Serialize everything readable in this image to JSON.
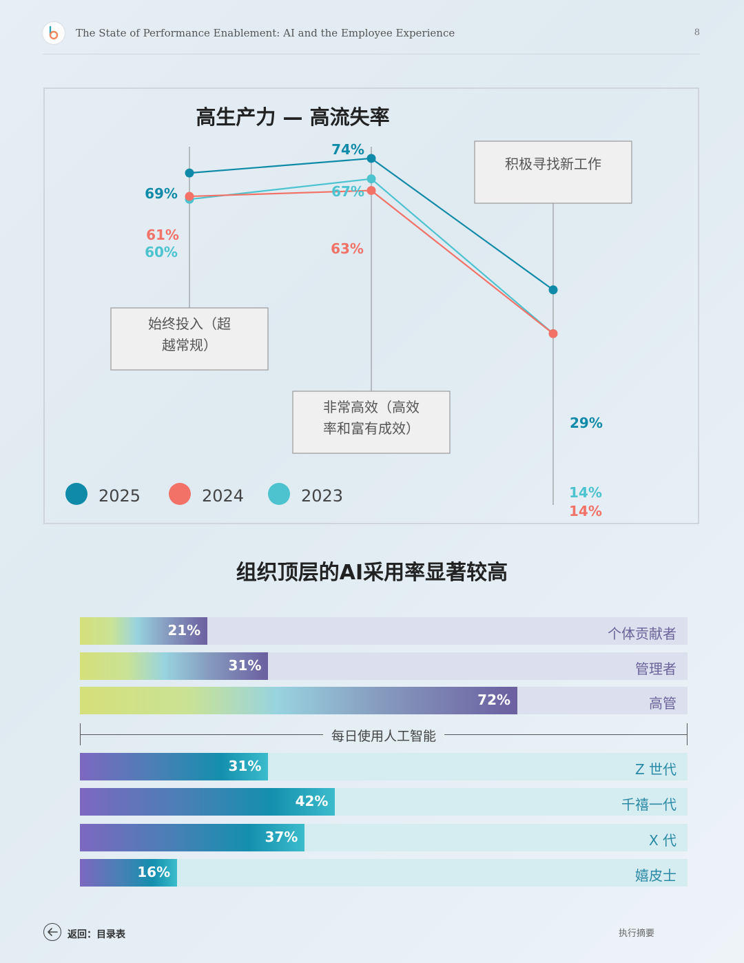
{
  "header": {
    "logo_icon": "b-logo-icon",
    "doc_title": "The State of Performance Enablement: AI and the Employee Experience",
    "page_number": "8"
  },
  "line_chart": {
    "title": "高生产力 — 高流失率",
    "annotations": [
      "始终投入（超越常规）",
      "非常高效（高效率和富有成效）",
      "积极寻找新工作"
    ],
    "legend": [
      {
        "label": "2025",
        "color": "#0f8aa8"
      },
      {
        "label": "2024",
        "color": "#f27268"
      },
      {
        "label": "2023",
        "color": "#4cc3cf"
      }
    ]
  },
  "bar_chart": {
    "title": "组织顶层的AI采用率显著较高",
    "divider_label": "每日使用人工智能"
  },
  "chart_data": [
    {
      "type": "line",
      "title": "高生产力 — 高流失率",
      "categories": [
        "始终投入（超越常规）",
        "非常高效（高效率和富有成效）",
        "积极寻找新工作"
      ],
      "series": [
        {
          "name": "2025",
          "values": [
            69,
            74,
            29
          ],
          "labels": [
            "69%",
            "74%",
            "29%"
          ]
        },
        {
          "name": "2024",
          "values": [
            61,
            63,
            14
          ],
          "labels": [
            "61%",
            "63%",
            "14%"
          ]
        },
        {
          "name": "2023",
          "values": [
            60,
            67,
            14
          ],
          "labels": [
            "60%",
            "67%",
            "14%"
          ]
        }
      ],
      "ylim": [
        0,
        100
      ]
    },
    {
      "type": "bar",
      "title": "组织顶层的AI采用率显著较高",
      "orientation": "horizontal",
      "groups": [
        {
          "name": "role",
          "categories": [
            "个体贡献者",
            "管理者",
            "高管"
          ],
          "values": [
            21,
            31,
            72
          ],
          "labels": [
            "21%",
            "31%",
            "72%"
          ]
        },
        {
          "name": "generation",
          "categories": [
            "Z 世代",
            "千禧一代",
            "X 代",
            "嬉皮士"
          ],
          "values": [
            31,
            42,
            37,
            16
          ],
          "labels": [
            "31%",
            "42%",
            "37%",
            "16%"
          ]
        }
      ],
      "xlim": [
        0,
        100
      ],
      "xlabel": "每日使用人工智能"
    }
  ],
  "footer": {
    "back_label": "返回：目录表",
    "section_label": "执行摘要"
  }
}
